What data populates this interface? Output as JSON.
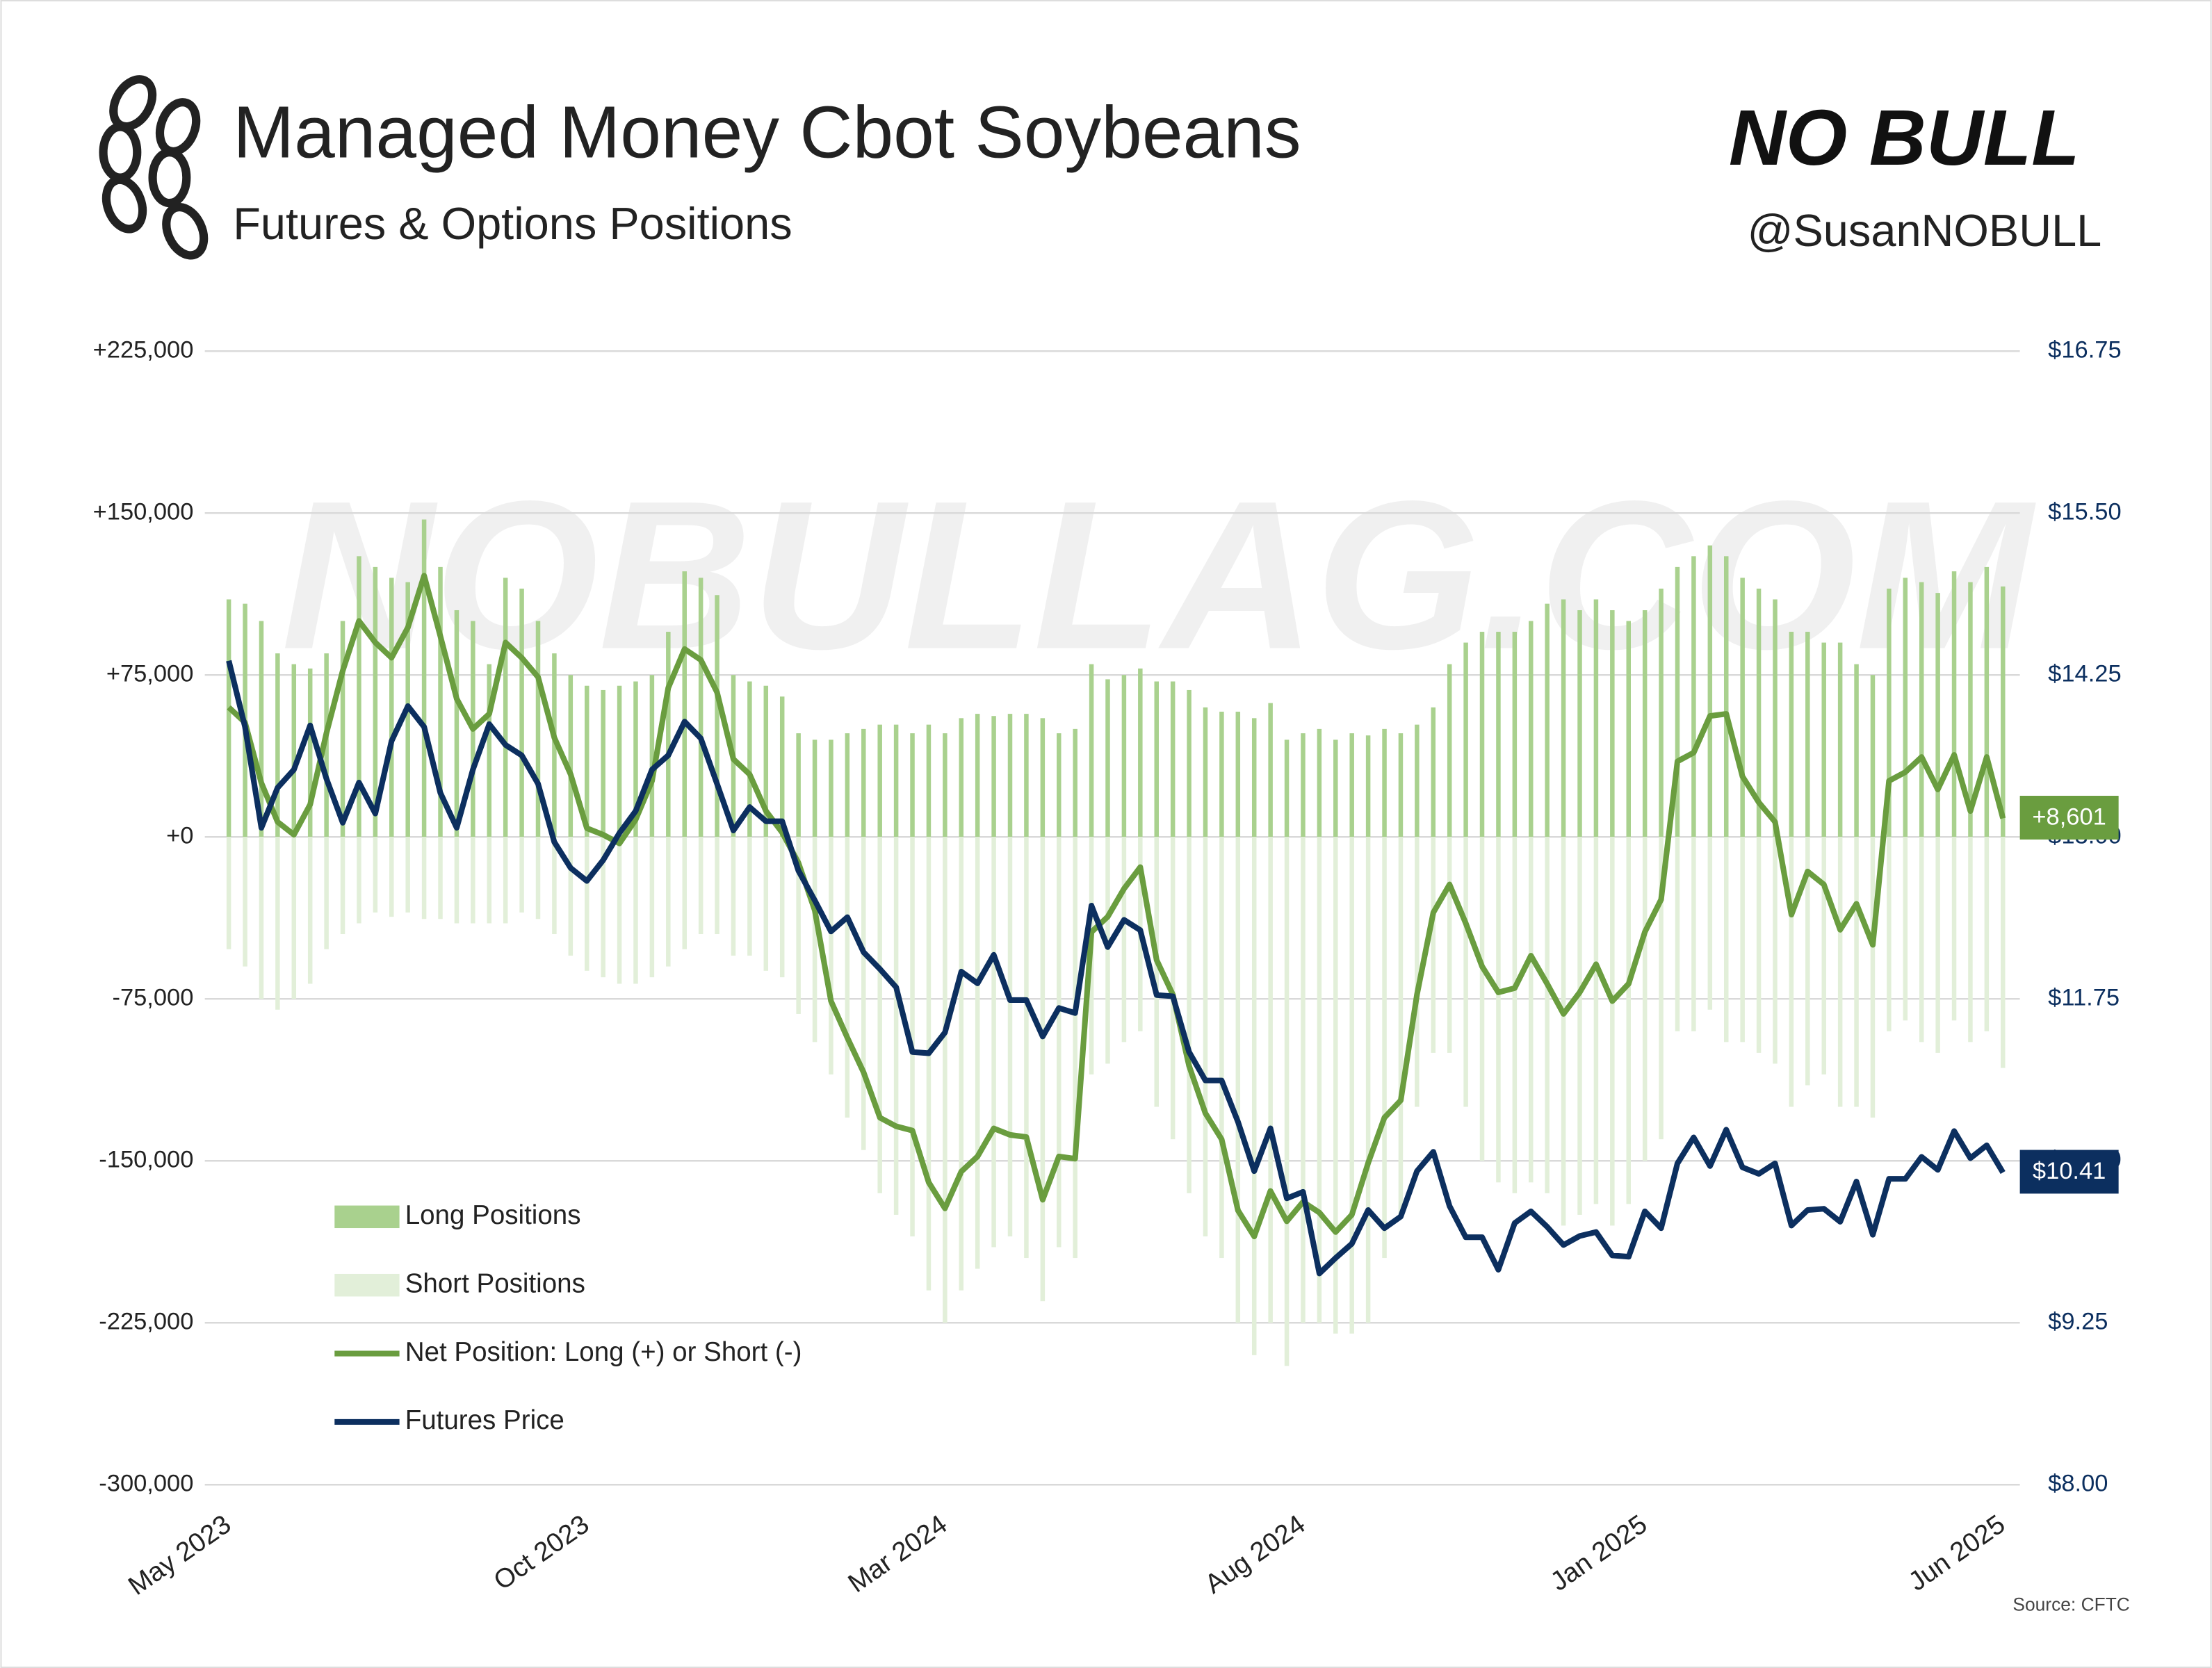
{
  "chart_data": {
    "type": "combo",
    "title": "Managed Money Cbot Soybeans",
    "subtitle": "Futures & Options Positions",
    "brand": "NO BULL",
    "handle": "@SusanNOBULL",
    "watermark": "NOBULLAG.COM",
    "source": "Source: CFTC",
    "legend": "lower left",
    "grid": true,
    "categories": [
      "May 2023",
      null,
      null,
      null,
      null,
      null,
      null,
      null,
      null,
      null,
      null,
      null,
      null,
      null,
      null,
      null,
      null,
      null,
      null,
      null,
      null,
      null,
      "Oct 2023",
      null,
      null,
      null,
      null,
      null,
      null,
      null,
      null,
      null,
      null,
      null,
      null,
      null,
      null,
      null,
      null,
      null,
      null,
      null,
      null,
      null,
      "Mar 2024",
      null,
      null,
      null,
      null,
      null,
      null,
      null,
      null,
      null,
      null,
      null,
      null,
      null,
      null,
      null,
      null,
      null,
      null,
      null,
      null,
      null,
      "Aug 2024",
      null,
      null,
      null,
      null,
      null,
      null,
      null,
      null,
      null,
      null,
      null,
      null,
      null,
      null,
      null,
      null,
      null,
      null,
      null,
      null,
      "Jan 2025",
      null,
      null,
      null,
      null,
      null,
      null,
      null,
      null,
      null,
      null,
      null,
      null,
      null,
      null,
      null,
      null,
      null,
      null,
      null,
      null,
      null,
      "Jun 2025"
    ],
    "ylim": [
      -300000,
      225000
    ],
    "yticks": [
      {
        "value": -300000,
        "label": "-300,000"
      },
      {
        "value": -225000,
        "label": "-225,000"
      },
      {
        "value": -150000,
        "label": "-150,000"
      },
      {
        "value": -75000,
        "label": "-75,000"
      },
      {
        "value": 0,
        "label": "+0"
      },
      {
        "value": 75000,
        "label": "+75,000"
      },
      {
        "value": 150000,
        "label": "+150,000"
      },
      {
        "value": 225000,
        "label": "+225,000"
      }
    ],
    "y2lim": [
      8,
      16.75
    ],
    "y2ticks": [
      {
        "value": 8,
        "label": "$8.00"
      },
      {
        "value": 9.25,
        "label": "$9.25"
      },
      {
        "value": 10.5,
        "label": "$10.50"
      },
      {
        "value": 11.75,
        "label": "$11.75"
      },
      {
        "value": 13,
        "label": "$13.00"
      },
      {
        "value": 14.25,
        "label": "$14.25"
      },
      {
        "value": 15.5,
        "label": "$15.50"
      },
      {
        "value": 16.75,
        "label": "$16.75"
      }
    ],
    "series": [
      {
        "name": "Long Positions",
        "type": "bar",
        "color": "#a9d18e",
        "values": [
          110000,
          108000,
          100000,
          85000,
          80000,
          78000,
          85000,
          100000,
          130000,
          125000,
          120000,
          118000,
          147000,
          125000,
          105000,
          100000,
          80000,
          120000,
          115000,
          100000,
          85000,
          75000,
          70000,
          68000,
          70000,
          72000,
          75000,
          95000,
          123000,
          120000,
          112000,
          75000,
          72000,
          70000,
          65000,
          48000,
          45000,
          45000,
          48000,
          50000,
          52000,
          52000,
          48000,
          52000,
          48000,
          55000,
          57000,
          56000,
          57000,
          57000,
          55000,
          48000,
          50000,
          80000,
          73000,
          75000,
          78000,
          72000,
          72000,
          68000,
          60000,
          58000,
          58000,
          55000,
          62000,
          45000,
          48000,
          50000,
          45000,
          48000,
          47000,
          50000,
          48000,
          52000,
          60000,
          80000,
          90000,
          95000,
          95000,
          95000,
          100000,
          108000,
          110000,
          105000,
          110000,
          105000,
          100000,
          105000,
          115000,
          125000,
          130000,
          135000,
          130000,
          120000,
          115000,
          110000,
          95000,
          95000,
          90000,
          90000,
          80000,
          75000,
          115000,
          120000,
          118000,
          113000,
          123000,
          118000,
          125000,
          116000
        ]
      },
      {
        "name": "Short Positions",
        "type": "bar",
        "color": "#e2efd9",
        "values": [
          -52000,
          -60000,
          -75000,
          -80000,
          -75000,
          -68000,
          -52000,
          -45000,
          -40000,
          -35000,
          -37000,
          -35000,
          -38000,
          -38000,
          -40000,
          -40000,
          -40000,
          -40000,
          -35000,
          -38000,
          -45000,
          -55000,
          -62000,
          -65000,
          -68000,
          -68000,
          -65000,
          -60000,
          -52000,
          -45000,
          -45000,
          -55000,
          -55000,
          -62000,
          -65000,
          -82000,
          -95000,
          -110000,
          -130000,
          -145000,
          -165000,
          -175000,
          -185000,
          -210000,
          -225000,
          -210000,
          -200000,
          -190000,
          -185000,
          -195000,
          -215000,
          -190000,
          -195000,
          -110000,
          -105000,
          -95000,
          -90000,
          -125000,
          -140000,
          -165000,
          -185000,
          -195000,
          -225000,
          -240000,
          -225000,
          -245000,
          -225000,
          -225000,
          -230000,
          -230000,
          -225000,
          -195000,
          -175000,
          -125000,
          -100000,
          -100000,
          -125000,
          -150000,
          -160000,
          -165000,
          -160000,
          -165000,
          -180000,
          -175000,
          -170000,
          -180000,
          -170000,
          -150000,
          -140000,
          -90000,
          -90000,
          -80000,
          -95000,
          -95000,
          -100000,
          -105000,
          -125000,
          -115000,
          -110000,
          -125000,
          -125000,
          -130000,
          -90000,
          -85000,
          -95000,
          -100000,
          -85000,
          -95000,
          -90000,
          -107000
        ]
      },
      {
        "name": "Net Position: Long (+) or Short (-)",
        "type": "line",
        "color": "#6a9d3f",
        "values": [
          60000,
          53000,
          25000,
          7000,
          1000,
          15000,
          48000,
          77000,
          100000,
          90000,
          83000,
          97000,
          121000,
          93000,
          64000,
          50000,
          57000,
          90000,
          83000,
          74000,
          46000,
          29000,
          4000,
          1000,
          -3000,
          8000,
          26000,
          69000,
          87000,
          82000,
          67000,
          36000,
          29000,
          12000,
          2000,
          -12000,
          -34000,
          -76000,
          -93000,
          -109000,
          -130000,
          -134000,
          -136000,
          -160000,
          -172000,
          -155000,
          -148000,
          -135000,
          -138000,
          -139000,
          -168000,
          -148000,
          -149000,
          -44000,
          -37000,
          -24000,
          -14000,
          -57000,
          -73000,
          -106000,
          -128000,
          -140000,
          -173000,
          -185000,
          -164000,
          -178000,
          -169000,
          -174000,
          -183000,
          -175000,
          -151000,
          -130000,
          -122000,
          -73000,
          -35000,
          -22000,
          -40000,
          -60000,
          -72000,
          -70000,
          -55000,
          -68000,
          -82000,
          -72000,
          -59000,
          -76000,
          -68000,
          -44000,
          -29000,
          35000,
          39000,
          56000,
          57000,
          28000,
          16000,
          7000,
          -36000,
          -16000,
          -22000,
          -43000,
          -31000,
          -50000,
          26000,
          30000,
          37000,
          22000,
          38000,
          12000,
          37000,
          8601
        ],
        "value_labels": [
          null,
          null,
          null,
          null,
          null,
          null,
          null,
          null,
          null,
          null,
          null,
          null,
          null,
          null,
          null,
          null,
          null,
          null,
          null,
          null,
          null,
          null,
          null,
          null,
          null,
          null,
          null,
          null,
          null,
          null,
          null,
          null,
          null,
          null,
          null,
          null,
          null,
          null,
          null,
          null,
          null,
          null,
          null,
          null,
          null,
          null,
          null,
          null,
          null,
          null,
          null,
          null,
          null,
          null,
          null,
          null,
          null,
          null,
          null,
          null,
          null,
          null,
          null,
          null,
          null,
          null,
          null,
          null,
          null,
          null,
          null,
          null,
          null,
          null,
          null,
          null,
          null,
          null,
          null,
          null,
          null,
          null,
          null,
          null,
          null,
          null,
          null,
          null,
          null,
          null,
          null,
          null,
          null,
          null,
          null,
          null,
          null,
          null,
          null,
          null,
          null,
          null,
          null,
          null,
          null,
          null,
          null,
          null,
          null,
          "+8,601"
        ]
      },
      {
        "name": "Futures Price",
        "type": "line",
        "axis": "y2",
        "color": "#0c2f5f",
        "values": [
          14.36,
          13.85,
          13.07,
          13.38,
          13.52,
          13.86,
          13.45,
          13.11,
          13.42,
          13.18,
          13.74,
          14.01,
          13.85,
          13.34,
          13.07,
          13.52,
          13.87,
          13.71,
          13.63,
          13.41,
          12.96,
          12.76,
          12.66,
          12.82,
          13.03,
          13.2,
          13.52,
          13.63,
          13.89,
          13.76,
          13.41,
          13.05,
          13.23,
          13.12,
          13.12,
          12.74,
          12.51,
          12.27,
          12.38,
          12.11,
          11.98,
          11.84,
          11.34,
          11.33,
          11.49,
          11.96,
          11.87,
          12.09,
          11.74,
          11.74,
          11.46,
          11.68,
          11.64,
          12.47,
          12.15,
          12.36,
          12.28,
          11.78,
          11.77,
          11.34,
          11.12,
          11.12,
          10.8,
          10.42,
          10.75,
          10.21,
          10.26,
          9.63,
          9.75,
          9.86,
          10.12,
          9.98,
          10.07,
          10.42,
          10.57,
          10.15,
          9.91,
          9.91,
          9.66,
          10.02,
          10.11,
          9.99,
          9.85,
          9.92,
          9.95,
          9.77,
          9.76,
          10.11,
          9.98,
          10.48,
          10.68,
          10.46,
          10.74,
          10.45,
          10.4,
          10.48,
          10,
          10.12,
          10.13,
          10.03,
          10.34,
          9.93,
          10.36,
          10.36,
          10.53,
          10.43,
          10.73,
          10.52,
          10.62,
          10.41
        ],
        "value_labels": [
          null,
          null,
          null,
          null,
          null,
          null,
          null,
          null,
          null,
          null,
          null,
          null,
          null,
          null,
          null,
          null,
          null,
          null,
          null,
          null,
          null,
          null,
          null,
          null,
          null,
          null,
          null,
          null,
          null,
          null,
          null,
          null,
          null,
          null,
          null,
          null,
          null,
          null,
          null,
          null,
          null,
          null,
          null,
          null,
          null,
          null,
          null,
          null,
          null,
          null,
          null,
          null,
          null,
          null,
          null,
          null,
          null,
          null,
          null,
          null,
          null,
          null,
          null,
          null,
          null,
          null,
          null,
          null,
          null,
          null,
          null,
          null,
          null,
          null,
          null,
          null,
          null,
          null,
          null,
          null,
          null,
          null,
          null,
          null,
          null,
          null,
          null,
          null,
          null,
          null,
          null,
          null,
          null,
          null,
          null,
          null,
          null,
          null,
          null,
          null,
          null,
          null,
          null,
          null,
          null,
          null,
          null,
          null,
          null,
          "$10.41"
        ]
      }
    ]
  }
}
